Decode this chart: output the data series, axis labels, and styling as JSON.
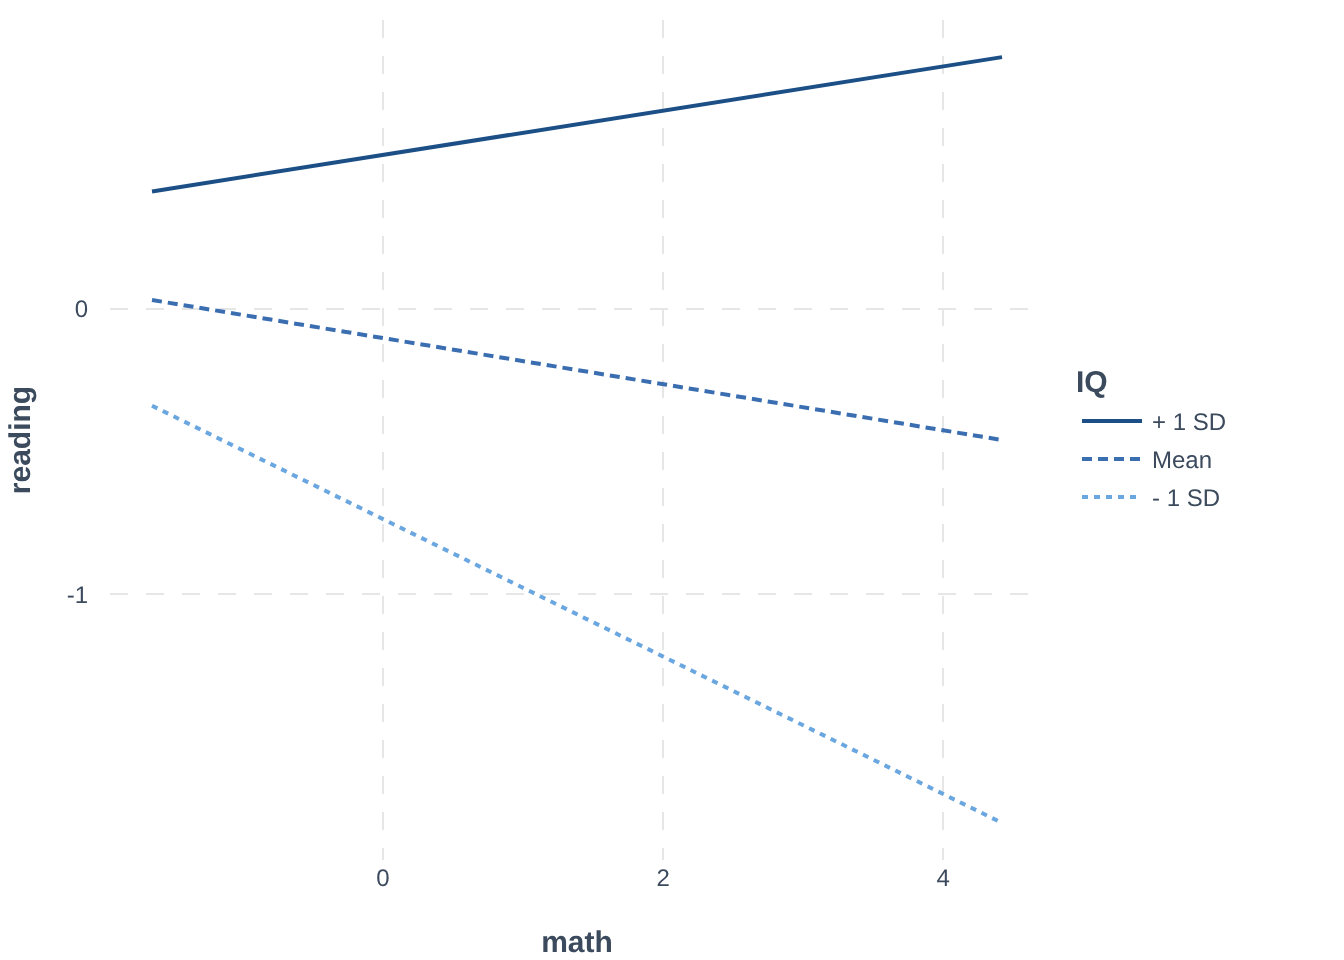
{
  "chart_data": {
    "type": "line",
    "xlabel": "math",
    "ylabel": "reading",
    "legend_title": "IQ",
    "legend": "right",
    "grid": true,
    "x": [
      -1.65,
      4.42
    ],
    "series": [
      {
        "name": "+ 1 SD",
        "color": "#1b4f86",
        "values": [
          0.41,
          0.88
        ],
        "line_style": "solid"
      },
      {
        "name": "Mean",
        "color": "#3a6eb0",
        "values": [
          0.03,
          -0.46
        ],
        "line_style": "dashed"
      },
      {
        "name": "- 1 SD",
        "color": "#6aa6df",
        "values": [
          -0.34,
          -1.8
        ],
        "line_style": "dotted"
      }
    ],
    "xlim": [
      -1.95,
      4.72
    ],
    "xticks": [
      0,
      2,
      4
    ],
    "ylim": [
      -1.93,
      1.01
    ],
    "yticks": [
      -1,
      0
    ]
  }
}
